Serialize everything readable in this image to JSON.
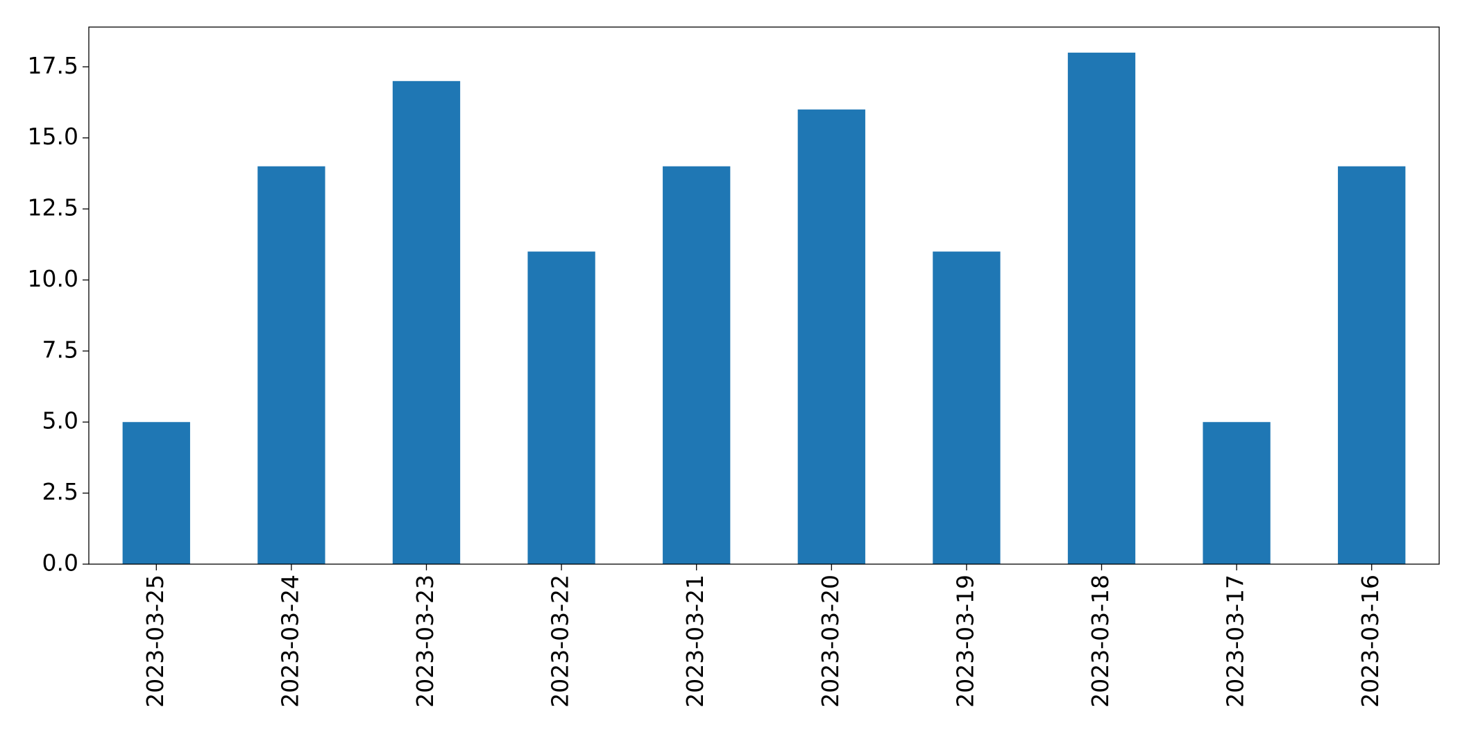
{
  "chart_data": {
    "type": "bar",
    "categories": [
      "2023-03-25",
      "2023-03-24",
      "2023-03-23",
      "2023-03-22",
      "2023-03-21",
      "2023-03-20",
      "2023-03-19",
      "2023-03-18",
      "2023-03-17",
      "2023-03-16"
    ],
    "values": [
      5,
      14,
      17,
      11,
      14,
      16,
      11,
      18,
      5,
      14
    ],
    "color": "#1f77b4",
    "ylim": [
      0,
      18.9
    ],
    "yticks": [
      {
        "value": 0,
        "label": "0.0"
      },
      {
        "value": 2.5,
        "label": "2.5"
      },
      {
        "value": 5,
        "label": "5.0"
      },
      {
        "value": 7.5,
        "label": "7.5"
      },
      {
        "value": 10,
        "label": "10.0"
      },
      {
        "value": 12.5,
        "label": "12.5"
      },
      {
        "value": 15,
        "label": "15.0"
      },
      {
        "value": 17.5,
        "label": "17.5"
      }
    ],
    "grid": false
  }
}
